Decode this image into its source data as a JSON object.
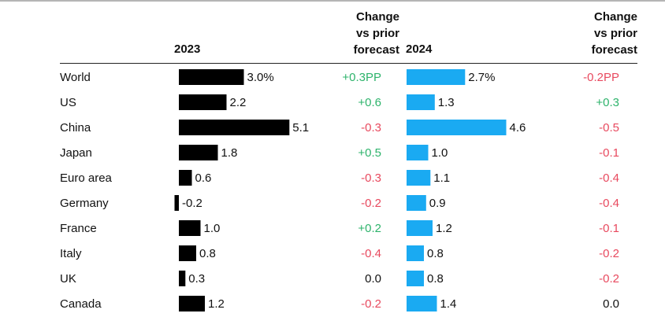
{
  "chart_data": {
    "type": "bar",
    "headers": {
      "y2023": "2023",
      "y2024": "2024",
      "change_l1": "Change",
      "change_l2": "vs prior",
      "change_l3": "forecast"
    },
    "categories": [
      "World",
      "US",
      "China",
      "Japan",
      "Euro area",
      "Germany",
      "France",
      "Italy",
      "UK",
      "Canada"
    ],
    "series": [
      {
        "name": "2023",
        "color": "#000000",
        "values": [
          3.0,
          2.2,
          5.1,
          1.8,
          0.6,
          -0.2,
          1.0,
          0.8,
          0.3,
          1.2
        ],
        "labels": [
          "3.0%",
          "2.2",
          "5.1",
          "1.8",
          "0.6",
          "-0.2",
          "1.0",
          "0.8",
          "0.3",
          "1.2"
        ],
        "change": [
          "+0.3PP",
          "+0.6",
          "-0.3",
          "+0.5",
          "-0.3",
          "-0.2",
          "+0.2",
          "-0.4",
          "0.0",
          "-0.2"
        ]
      },
      {
        "name": "2024",
        "color": "#1aaaf2",
        "values": [
          2.7,
          1.3,
          4.6,
          1.0,
          1.1,
          0.9,
          1.2,
          0.8,
          0.8,
          1.4
        ],
        "labels": [
          "2.7%",
          "1.3",
          "4.6",
          "1.0",
          "1.1",
          "0.9",
          "1.2",
          "0.8",
          "0.8",
          "1.4"
        ],
        "change": [
          "-0.2PP",
          "+0.3",
          "-0.5",
          "-0.1",
          "-0.4",
          "-0.4",
          "-0.1",
          "-0.2",
          "-0.2",
          "0.0"
        ]
      }
    ],
    "colors": {
      "positive": "#2db36b",
      "negative": "#e8495e",
      "neutral": "#111111"
    }
  }
}
